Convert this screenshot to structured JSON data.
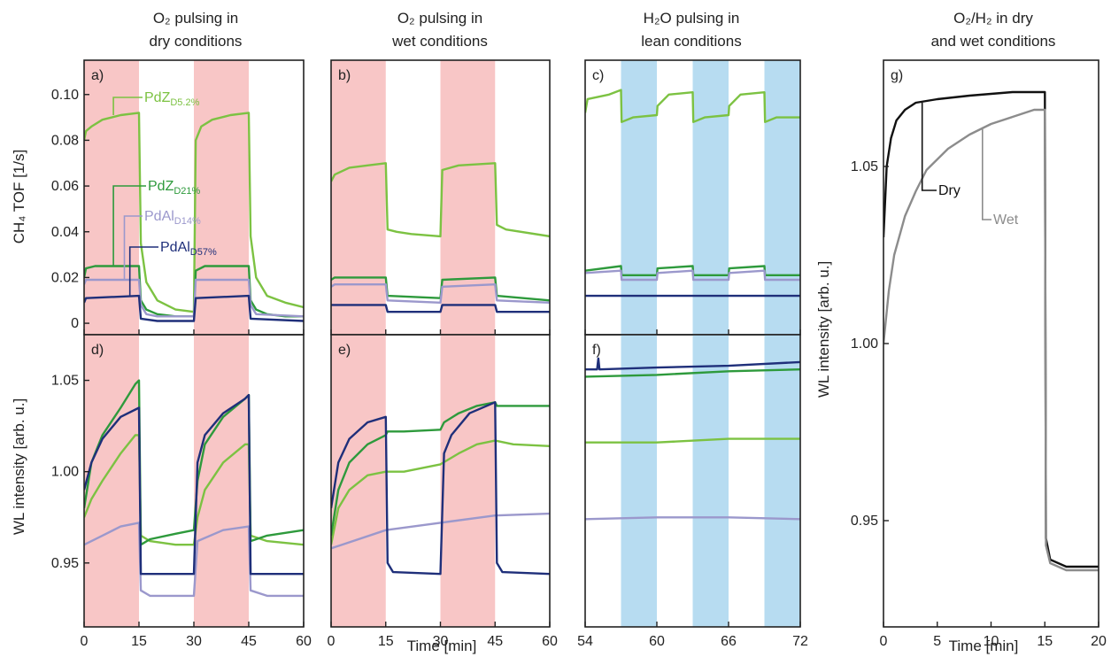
{
  "columns": [
    {
      "line1": "O₂ pulsing in",
      "line2": "dry conditions"
    },
    {
      "line1": "O₂ pulsing in",
      "line2": "wet conditions"
    },
    {
      "line1": "H₂O pulsing in",
      "line2": "lean conditions"
    },
    {
      "line1": "O₂/H₂ in dry",
      "line2": "and wet conditions"
    }
  ],
  "axes": {
    "tof_ylabel": "CH₄ TOF [1/s]",
    "wl_ylabel": "WL intensity [arb. u.]",
    "xlabel": "Time [min]"
  },
  "colors": {
    "pdz_d52": "#7cc242",
    "pdz_d21": "#2e9a3c",
    "pdal_d14": "#9b98cc",
    "pdal_d57": "#1f2f7a",
    "o2_pulse": "#f8c6c6",
    "h2o_pulse": "#b7dcf1",
    "dry": "#111111",
    "wet": "#8c8c8c"
  },
  "chart_data": [
    {
      "panel": "a)",
      "type": "line",
      "ylabel": "CH₄ TOF [1/s]",
      "xlim": [
        0,
        60
      ],
      "ylim": [
        -0.005,
        0.115
      ],
      "xticks": [
        0,
        15,
        30,
        45,
        60
      ],
      "yticks": [
        {
          "v": 0,
          "t": "0"
        },
        {
          "v": 0.02,
          "t": "0.02"
        },
        {
          "v": 0.04,
          "t": "0.04"
        },
        {
          "v": 0.06,
          "t": "0.06"
        },
        {
          "v": 0.08,
          "t": "0.08"
        },
        {
          "v": 0.1,
          "t": "0.10"
        }
      ],
      "shading": {
        "color": "o2_pulse",
        "ranges": [
          [
            0,
            15
          ],
          [
            30,
            45
          ]
        ]
      },
      "series": [
        {
          "key": "pdz_d52",
          "name": "PdZD5.2%",
          "x": [
            0,
            0.5,
            2,
            5,
            10,
            15,
            15.5,
            17,
            20,
            25,
            30,
            30.5,
            32,
            35,
            40,
            45,
            45.5,
            47,
            50,
            55,
            60
          ],
          "y": [
            0.08,
            0.084,
            0.086,
            0.089,
            0.091,
            0.092,
            0.035,
            0.018,
            0.01,
            0.006,
            0.005,
            0.08,
            0.086,
            0.089,
            0.091,
            0.092,
            0.038,
            0.02,
            0.012,
            0.009,
            0.007
          ]
        },
        {
          "key": "pdz_d21",
          "name": "PdZD21%",
          "x": [
            0,
            0.5,
            3,
            15,
            15.5,
            17,
            20,
            25,
            30,
            30.5,
            33,
            45,
            45.5,
            47,
            50,
            55,
            60
          ],
          "y": [
            0.02,
            0.024,
            0.025,
            0.025,
            0.01,
            0.006,
            0.004,
            0.003,
            0.003,
            0.023,
            0.025,
            0.025,
            0.01,
            0.006,
            0.004,
            0.003,
            0.003
          ]
        },
        {
          "key": "pdal_d14",
          "name": "PdAlD14%",
          "x": [
            0,
            0.5,
            15,
            15.5,
            17,
            20,
            30,
            30.5,
            45,
            45.5,
            47,
            60
          ],
          "y": [
            0.017,
            0.019,
            0.019,
            0.008,
            0.004,
            0.003,
            0.003,
            0.019,
            0.019,
            0.008,
            0.004,
            0.003
          ]
        },
        {
          "key": "pdal_d57",
          "name": "PdAlD57%",
          "x": [
            0,
            0.5,
            15,
            15.5,
            20,
            30,
            30.5,
            45,
            45.5,
            60
          ],
          "y": [
            0.009,
            0.011,
            0.012,
            0.002,
            0.001,
            0.001,
            0.011,
            0.012,
            0.002,
            0.001
          ]
        }
      ]
    },
    {
      "panel": "b)",
      "type": "line",
      "xlim": [
        0,
        60
      ],
      "ylim": [
        -0.005,
        0.115
      ],
      "xticks": [
        0,
        15,
        30,
        45,
        60
      ],
      "yticks": [],
      "shading": {
        "color": "o2_pulse",
        "ranges": [
          [
            0,
            15
          ],
          [
            30,
            45
          ]
        ]
      },
      "series": [
        {
          "key": "pdz_d52",
          "x": [
            0,
            1,
            5,
            10,
            15,
            15.5,
            18,
            22,
            30,
            30.5,
            35,
            45,
            45.5,
            48,
            60
          ],
          "y": [
            0.062,
            0.065,
            0.068,
            0.069,
            0.07,
            0.041,
            0.04,
            0.039,
            0.038,
            0.067,
            0.069,
            0.07,
            0.043,
            0.041,
            0.038
          ]
        },
        {
          "key": "pdz_d21",
          "x": [
            0,
            1,
            15,
            15.5,
            30,
            30.5,
            45,
            45.5,
            60
          ],
          "y": [
            0.019,
            0.02,
            0.02,
            0.012,
            0.011,
            0.019,
            0.02,
            0.012,
            0.01
          ]
        },
        {
          "key": "pdal_d14",
          "x": [
            0,
            1,
            15,
            15.5,
            30,
            30.5,
            45,
            45.5,
            60
          ],
          "y": [
            0.016,
            0.017,
            0.017,
            0.01,
            0.009,
            0.016,
            0.017,
            0.01,
            0.009
          ]
        },
        {
          "key": "pdal_d57",
          "x": [
            0,
            1,
            15,
            15.5,
            30,
            30.5,
            45,
            45.5,
            60
          ],
          "y": [
            0.008,
            0.008,
            0.008,
            0.005,
            0.005,
            0.008,
            0.008,
            0.005,
            0.005
          ]
        }
      ]
    },
    {
      "panel": "c)",
      "type": "line",
      "xlim": [
        54,
        72
      ],
      "ylim": [
        -0.005,
        0.115
      ],
      "xticks": [
        54,
        60,
        66,
        72
      ],
      "yticks": [],
      "shading": {
        "color": "h2o_pulse",
        "ranges": [
          [
            57,
            60
          ],
          [
            63,
            66
          ],
          [
            69,
            72
          ]
        ]
      },
      "series": [
        {
          "key": "pdz_d52",
          "x": [
            54,
            54.2,
            56,
            57,
            57.05,
            58,
            60,
            60.05,
            61,
            63,
            63.05,
            64,
            66,
            66.05,
            67,
            69,
            69.05,
            70,
            72
          ],
          "y": [
            0.092,
            0.098,
            0.1,
            0.102,
            0.088,
            0.09,
            0.091,
            0.095,
            0.1,
            0.101,
            0.088,
            0.09,
            0.091,
            0.095,
            0.1,
            0.101,
            0.088,
            0.09,
            0.09
          ]
        },
        {
          "key": "pdz_d21",
          "x": [
            54,
            57,
            57.05,
            60,
            60.05,
            63,
            63.05,
            66,
            66.05,
            69,
            69.05,
            72
          ],
          "y": [
            0.023,
            0.025,
            0.021,
            0.021,
            0.024,
            0.025,
            0.021,
            0.021,
            0.024,
            0.025,
            0.021,
            0.021
          ]
        },
        {
          "key": "pdal_d14",
          "x": [
            54,
            57,
            57.05,
            60,
            60.05,
            63,
            63.05,
            66,
            66.05,
            69,
            69.05,
            72
          ],
          "y": [
            0.022,
            0.023,
            0.019,
            0.019,
            0.022,
            0.023,
            0.019,
            0.019,
            0.022,
            0.023,
            0.019,
            0.019
          ]
        },
        {
          "key": "pdal_d57",
          "x": [
            54,
            60,
            66,
            72
          ],
          "y": [
            0.012,
            0.012,
            0.012,
            0.012
          ]
        }
      ]
    },
    {
      "panel": "d)",
      "type": "line",
      "ylabel": "WL intensity [arb. u.]",
      "xlim": [
        0,
        60
      ],
      "ylim": [
        0.915,
        1.075
      ],
      "xticks": [
        0,
        15,
        30,
        45,
        60
      ],
      "yticks": [
        {
          "v": 0.95,
          "t": "0.95"
        },
        {
          "v": 1.0,
          "t": "1.00"
        },
        {
          "v": 1.05,
          "t": "1.05"
        }
      ],
      "shading": {
        "color": "o2_pulse",
        "ranges": [
          [
            0,
            15
          ],
          [
            30,
            45
          ]
        ]
      },
      "series": [
        {
          "key": "pdz_d52",
          "x": [
            0,
            2,
            5,
            10,
            14,
            15,
            15.5,
            18,
            25,
            30,
            31,
            33,
            38,
            44,
            45,
            45.5,
            50,
            60
          ],
          "y": [
            0.975,
            0.985,
            0.995,
            1.01,
            1.02,
            1.02,
            0.965,
            0.962,
            0.96,
            0.96,
            0.975,
            0.99,
            1.005,
            1.015,
            1.015,
            0.965,
            0.962,
            0.96
          ]
        },
        {
          "key": "pdz_d21",
          "x": [
            0,
            2,
            5,
            10,
            14,
            15,
            15.5,
            18,
            25,
            30,
            31,
            33,
            38,
            44,
            45,
            45.5,
            50,
            60
          ],
          "y": [
            0.98,
            1.005,
            1.02,
            1.035,
            1.048,
            1.05,
            0.96,
            0.963,
            0.966,
            0.968,
            0.995,
            1.015,
            1.03,
            1.04,
            1.042,
            0.962,
            0.965,
            0.968
          ]
        },
        {
          "key": "pdal_d14",
          "x": [
            0,
            5,
            10,
            15,
            15.5,
            18,
            25,
            30,
            31,
            38,
            45,
            45.5,
            50,
            60
          ],
          "y": [
            0.96,
            0.965,
            0.97,
            0.972,
            0.935,
            0.932,
            0.932,
            0.932,
            0.962,
            0.968,
            0.97,
            0.935,
            0.932,
            0.932
          ]
        },
        {
          "key": "pdal_d57",
          "x": [
            0,
            2,
            5,
            10,
            15,
            15.5,
            20,
            30,
            31,
            33,
            38,
            44,
            45,
            45.5,
            50,
            60
          ],
          "y": [
            0.99,
            1.005,
            1.018,
            1.03,
            1.035,
            0.944,
            0.944,
            0.944,
            1.005,
            1.02,
            1.032,
            1.04,
            1.042,
            0.944,
            0.944,
            0.944
          ]
        }
      ]
    },
    {
      "panel": "e)",
      "type": "line",
      "xlim": [
        0,
        60
      ],
      "ylim": [
        0.915,
        1.075
      ],
      "xticks": [
        0,
        15,
        30,
        45,
        60
      ],
      "yticks": [],
      "shading": {
        "color": "o2_pulse",
        "ranges": [
          [
            0,
            15
          ],
          [
            30,
            45
          ]
        ]
      },
      "series": [
        {
          "key": "pdz_d52",
          "x": [
            0,
            2,
            5,
            10,
            15,
            20,
            25,
            30,
            35,
            40,
            45,
            50,
            60
          ],
          "y": [
            0.96,
            0.98,
            0.99,
            0.998,
            1.0,
            1.0,
            1.002,
            1.004,
            1.01,
            1.015,
            1.017,
            1.015,
            1.014
          ]
        },
        {
          "key": "pdz_d21",
          "x": [
            0,
            2,
            5,
            10,
            15,
            15.5,
            20,
            30,
            31,
            35,
            40,
            45,
            45.5,
            50,
            60
          ],
          "y": [
            0.965,
            0.99,
            1.005,
            1.015,
            1.02,
            1.022,
            1.022,
            1.023,
            1.027,
            1.032,
            1.036,
            1.038,
            1.036,
            1.036,
            1.036
          ]
        },
        {
          "key": "pdal_d14",
          "x": [
            0,
            15,
            30,
            45,
            60
          ],
          "y": [
            0.958,
            0.968,
            0.972,
            0.976,
            0.977
          ]
        },
        {
          "key": "pdal_d57",
          "x": [
            0,
            2,
            5,
            10,
            15,
            15.5,
            17,
            30,
            31,
            33,
            38,
            45,
            45.5,
            47,
            60
          ],
          "y": [
            0.98,
            1.005,
            1.018,
            1.027,
            1.03,
            0.95,
            0.945,
            0.944,
            1.01,
            1.02,
            1.032,
            1.038,
            0.95,
            0.945,
            0.944
          ]
        }
      ]
    },
    {
      "panel": "f)",
      "type": "line",
      "xlim": [
        54,
        72
      ],
      "ylim": [
        0.915,
        1.075
      ],
      "xticks": [
        54,
        60,
        66,
        72
      ],
      "yticks": [],
      "shading": {
        "color": "h2o_pulse",
        "ranges": [
          [
            57,
            60
          ],
          [
            63,
            66
          ],
          [
            69,
            72
          ]
        ]
      },
      "series": [
        {
          "key": "pdz_d52",
          "x": [
            54,
            60,
            66,
            72
          ],
          "y": [
            1.016,
            1.016,
            1.018,
            1.018
          ]
        },
        {
          "key": "pdz_d21",
          "x": [
            54,
            60,
            66,
            72
          ],
          "y": [
            1.052,
            1.053,
            1.055,
            1.056
          ]
        },
        {
          "key": "pdal_d14",
          "x": [
            54,
            60,
            66,
            72
          ],
          "y": [
            0.974,
            0.975,
            0.975,
            0.974
          ]
        },
        {
          "key": "pdal_d57",
          "x": [
            54,
            55,
            55.1,
            55.2,
            60,
            66,
            72
          ],
          "y": [
            1.056,
            1.056,
            1.062,
            1.056,
            1.057,
            1.058,
            1.06
          ]
        }
      ]
    },
    {
      "panel": "g)",
      "type": "line",
      "ylabel": "WL intensity [arb. u.]",
      "xlabel": "Time [min]",
      "xlim": [
        0,
        20
      ],
      "ylim": [
        0.92,
        1.08
      ],
      "xticks": [
        0,
        5,
        10,
        15,
        20
      ],
      "yticks": [
        {
          "v": 0.95,
          "t": "0.95"
        },
        {
          "v": 1.0,
          "t": "1.00"
        },
        {
          "v": 1.05,
          "t": "1.05"
        }
      ],
      "series": [
        {
          "key": "dry",
          "name": "Dry",
          "x": [
            0,
            0.3,
            0.7,
            1.2,
            2,
            3,
            5,
            8,
            12,
            15,
            15.1,
            15.5,
            17,
            20
          ],
          "y": [
            1.03,
            1.05,
            1.058,
            1.063,
            1.066,
            1.068,
            1.069,
            1.07,
            1.071,
            1.071,
            0.945,
            0.939,
            0.937,
            0.937
          ]
        },
        {
          "key": "wet",
          "name": "Wet",
          "x": [
            0,
            0.5,
            1,
            2,
            3,
            4,
            6,
            8,
            10,
            12,
            14,
            15,
            15.1,
            15.5,
            17,
            20
          ],
          "y": [
            1.0,
            1.015,
            1.025,
            1.036,
            1.043,
            1.049,
            1.055,
            1.059,
            1.062,
            1.064,
            1.066,
            1.066,
            0.943,
            0.938,
            0.936,
            0.936
          ]
        }
      ]
    }
  ]
}
